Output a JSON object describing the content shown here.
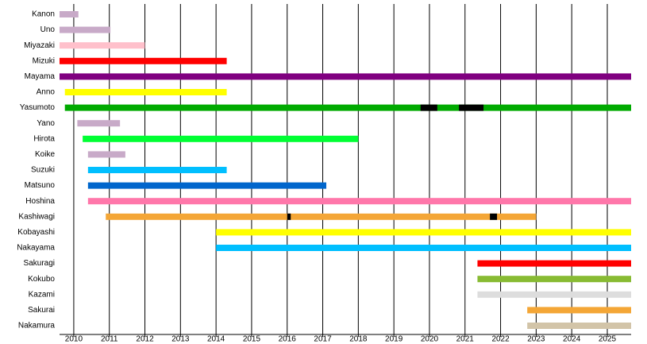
{
  "chart_data": {
    "type": "timeline",
    "xlim": [
      2009.6,
      2025.67
    ],
    "xticks": [
      2010,
      2011,
      2012,
      2013,
      2014,
      2015,
      2016,
      2017,
      2018,
      2019,
      2020,
      2021,
      2022,
      2023,
      2024,
      2025
    ],
    "grid": true,
    "gap_color": "#000000",
    "rows": [
      {
        "label": "Kanon",
        "start": 2009.6,
        "end": 2010.13,
        "color": "#c8aac8"
      },
      {
        "label": "Uno",
        "start": 2009.6,
        "end": 2011.03,
        "color": "#c8aac8"
      },
      {
        "label": "Miyazaki",
        "start": 2009.6,
        "end": 2012.0,
        "color": "#ffc0cb"
      },
      {
        "label": "Mizuki",
        "start": 2009.6,
        "end": 2014.3,
        "color": "#ff0000"
      },
      {
        "label": "Mayama",
        "start": 2009.6,
        "end": 2025.67,
        "color": "#800080"
      },
      {
        "label": "Anno",
        "start": 2009.75,
        "end": 2014.3,
        "color": "#ffff00"
      },
      {
        "label": "Yasumoto",
        "start": 2009.75,
        "end": 2025.67,
        "color": "#00aa00",
        "gaps": [
          {
            "start": 2019.75,
            "end": 2020.22
          },
          {
            "start": 2020.83,
            "end": 2021.52
          }
        ]
      },
      {
        "label": "Yano",
        "start": 2010.1,
        "end": 2011.3,
        "color": "#c8aac8"
      },
      {
        "label": "Hirota",
        "start": 2010.25,
        "end": 2018.0,
        "color": "#00ff33"
      },
      {
        "label": "Koike",
        "start": 2010.4,
        "end": 2011.45,
        "color": "#c8aac8"
      },
      {
        "label": "Suzuki",
        "start": 2010.4,
        "end": 2014.3,
        "color": "#00bfff"
      },
      {
        "label": "Matsuno",
        "start": 2010.4,
        "end": 2017.1,
        "color": "#0066cc"
      },
      {
        "label": "Hoshina",
        "start": 2010.4,
        "end": 2025.67,
        "color": "#ff77aa"
      },
      {
        "label": "Kashiwagi",
        "start": 2010.9,
        "end": 2023.0,
        "color": "#f4a636",
        "gaps": [
          {
            "start": 2016.0,
            "end": 2016.1
          },
          {
            "start": 2021.7,
            "end": 2021.9
          }
        ]
      },
      {
        "label": "Kobayashi",
        "start": 2014.0,
        "end": 2025.67,
        "color": "#ffff00"
      },
      {
        "label": "Nakayama",
        "start": 2014.0,
        "end": 2025.67,
        "color": "#00bfff"
      },
      {
        "label": "Sakuragi",
        "start": 2021.35,
        "end": 2025.67,
        "color": "#ff0000"
      },
      {
        "label": "Kokubo",
        "start": 2021.35,
        "end": 2025.67,
        "color": "#88bb33"
      },
      {
        "label": "Kazami",
        "start": 2021.35,
        "end": 2025.67,
        "color": "#dddddd"
      },
      {
        "label": "Sakurai",
        "start": 2022.75,
        "end": 2025.67,
        "color": "#f4a636"
      },
      {
        "label": "Nakamura",
        "start": 2022.75,
        "end": 2025.67,
        "color": "#d2c4a8"
      }
    ]
  }
}
